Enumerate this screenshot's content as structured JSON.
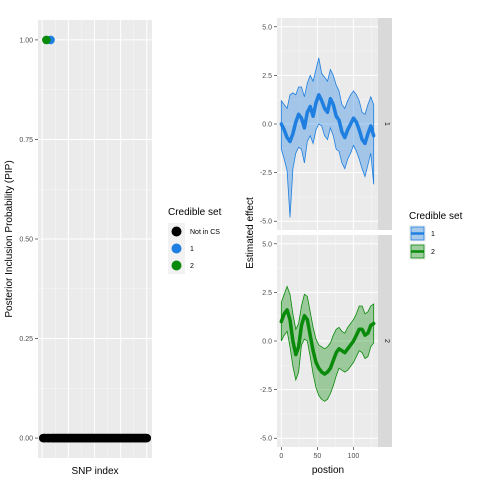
{
  "chart_data": [
    {
      "type": "scatter",
      "xlabel": "SNP index",
      "ylabel": "Posterior Inclusion Probability (PIP)",
      "ylim": [
        -0.05,
        1.05
      ],
      "yticks": [
        "0.00",
        "0.25",
        "0.50",
        "0.75",
        "1.00"
      ],
      "x_tick_labels_shown": false,
      "grid": true,
      "legend": {
        "title": "Credible set",
        "placement": "right",
        "entries": [
          {
            "label": "Not in CS",
            "color": "#000000"
          },
          {
            "label": "1",
            "color": "#1E7FE0"
          },
          {
            "label": "2",
            "color": "#0A8A0A"
          }
        ]
      },
      "series": [
        {
          "name": "Not in CS",
          "x_range": [
            1,
            100
          ],
          "y": 0.0
        },
        {
          "name": "1",
          "x": [
            8
          ],
          "y": [
            1.0
          ]
        },
        {
          "name": "2",
          "x": [
            4
          ],
          "y": [
            1.0
          ]
        }
      ]
    },
    {
      "type": "line",
      "xlabel": "postion",
      "ylabel": "Estimated effect",
      "xlim": [
        -6,
        134
      ],
      "xticks": [
        "0",
        "50",
        "100"
      ],
      "grid": true,
      "legend": {
        "title": "Credible set",
        "placement": "right",
        "entries": [
          {
            "label": "1",
            "color": "#1E7FE0"
          },
          {
            "label": "2",
            "color": "#0A8A0A"
          }
        ]
      },
      "panels": [
        {
          "strip_label": "1",
          "color": "#1E7FE0",
          "ylim": [
            -5,
            5
          ],
          "yticks": [
            "-5.0",
            "-2.5",
            "0.0",
            "2.5",
            "5.0"
          ],
          "x": [
            0,
            4,
            8,
            12,
            16,
            20,
            24,
            28,
            32,
            36,
            40,
            44,
            48,
            52,
            56,
            60,
            64,
            68,
            72,
            76,
            80,
            84,
            88,
            92,
            96,
            100,
            104,
            108,
            112,
            116,
            120,
            124,
            128
          ],
          "y": [
            0.0,
            -0.3,
            -0.7,
            -0.9,
            -0.5,
            0.1,
            0.5,
            0.3,
            -0.2,
            0.6,
            0.9,
            0.4,
            1.1,
            1.5,
            1.2,
            0.8,
            0.6,
            1.3,
            1.0,
            0.4,
            0.2,
            -0.4,
            -0.7,
            -0.3,
            0.0,
            0.3,
            0.1,
            -0.3,
            -0.8,
            -1.0,
            -0.5,
            -0.1,
            -0.6
          ],
          "lower": [
            -1.3,
            -1.8,
            -2.4,
            -4.8,
            -2.3,
            -1.5,
            -1.2,
            -1.3,
            -2.0,
            -0.9,
            -0.6,
            -1.0,
            -0.3,
            0.0,
            -0.1,
            -0.6,
            -0.8,
            -0.2,
            -0.6,
            -1.3,
            -1.4,
            -2.0,
            -2.3,
            -1.8,
            -1.5,
            -1.1,
            -1.4,
            -1.8,
            -2.3,
            -2.7,
            -2.1,
            -1.5,
            -3.1
          ],
          "upper": [
            1.2,
            1.0,
            0.8,
            1.5,
            1.6,
            1.5,
            1.9,
            1.9,
            1.4,
            2.1,
            2.5,
            2.2,
            2.8,
            3.4,
            2.6,
            2.4,
            2.2,
            2.8,
            2.5,
            2.0,
            1.7,
            1.0,
            0.8,
            1.2,
            1.5,
            1.7,
            1.5,
            1.2,
            0.6,
            0.5,
            1.0,
            1.4,
            1.0
          ]
        },
        {
          "strip_label": "2",
          "color": "#0A8A0A",
          "ylim": [
            -5,
            5
          ],
          "yticks": [
            "-5.0",
            "-2.5",
            "0.0",
            "2.5",
            "5.0"
          ],
          "x": [
            0,
            4,
            8,
            12,
            16,
            20,
            24,
            28,
            32,
            36,
            40,
            44,
            48,
            52,
            56,
            60,
            64,
            68,
            72,
            76,
            80,
            84,
            88,
            92,
            96,
            100,
            104,
            108,
            112,
            116,
            120,
            124,
            128
          ],
          "y": [
            1.0,
            1.4,
            1.6,
            1.1,
            0.0,
            -0.7,
            -0.3,
            0.8,
            1.3,
            1.1,
            0.3,
            -0.5,
            -1.1,
            -1.4,
            -1.6,
            -1.7,
            -1.6,
            -1.4,
            -1.0,
            -0.6,
            -0.4,
            -0.5,
            -0.6,
            -0.4,
            -0.2,
            0.0,
            0.3,
            0.6,
            0.6,
            0.3,
            0.4,
            0.8,
            0.9
          ],
          "lower": [
            0.0,
            0.3,
            0.5,
            -0.3,
            -1.3,
            -2.0,
            -1.6,
            -0.2,
            0.1,
            0.0,
            -0.8,
            -1.7,
            -2.4,
            -2.8,
            -3.0,
            -3.1,
            -3.0,
            -2.7,
            -2.3,
            -1.8,
            -1.4,
            -1.5,
            -1.6,
            -1.5,
            -1.3,
            -1.1,
            -0.8,
            -0.5,
            -0.6,
            -0.9,
            -0.8,
            -0.3,
            -0.1
          ],
          "upper": [
            2.0,
            2.4,
            2.8,
            2.4,
            1.4,
            0.6,
            0.9,
            1.8,
            2.4,
            2.3,
            1.5,
            0.7,
            0.1,
            -0.2,
            -0.3,
            -0.4,
            -0.3,
            -0.1,
            0.3,
            0.6,
            0.7,
            0.5,
            0.4,
            0.7,
            0.9,
            1.1,
            1.4,
            1.8,
            1.8,
            1.4,
            1.5,
            1.8,
            1.9
          ]
        }
      ]
    }
  ]
}
